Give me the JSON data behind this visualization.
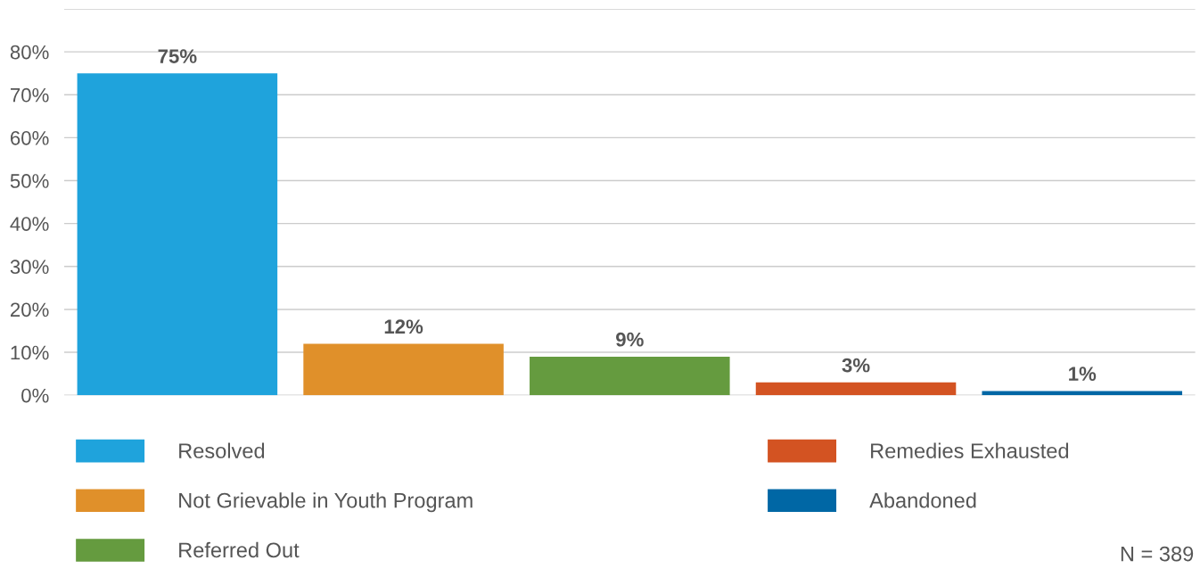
{
  "chart_data": {
    "type": "bar",
    "categories": [
      null,
      null,
      null,
      null,
      null
    ],
    "series": [
      {
        "name": "Resolved",
        "color": "#1fa3dc",
        "values": [
          75,
          null,
          null,
          null,
          null
        ],
        "value_labels": [
          "75%",
          null,
          null,
          null,
          null
        ]
      },
      {
        "name": "Not Grievable in Youth Program",
        "color": "#e0902a",
        "values": [
          null,
          12,
          null,
          null,
          null
        ],
        "value_labels": [
          null,
          "12%",
          null,
          null,
          null
        ]
      },
      {
        "name": "Referred Out",
        "color": "#659b3f",
        "values": [
          null,
          null,
          9,
          null,
          null
        ],
        "value_labels": [
          null,
          null,
          "9%",
          null,
          null
        ]
      },
      {
        "name": "Remedies Exhausted",
        "color": "#d35322",
        "values": [
          null,
          null,
          null,
          3,
          null
        ],
        "value_labels": [
          null,
          null,
          null,
          "3%",
          null
        ]
      },
      {
        "name": "Abandoned",
        "color": "#0067a5",
        "values": [
          null,
          null,
          null,
          null,
          1
        ],
        "value_labels": [
          null,
          null,
          null,
          null,
          "1%"
        ]
      }
    ],
    "ylim": [
      0,
      90
    ],
    "yticks": [
      {
        "value": 0,
        "label": "0%"
      },
      {
        "value": 10,
        "label": "10%"
      },
      {
        "value": 20,
        "label": "20%"
      },
      {
        "value": 30,
        "label": "30%"
      },
      {
        "value": 40,
        "label": "40%"
      },
      {
        "value": 50,
        "label": "50%"
      },
      {
        "value": 60,
        "label": "60%"
      },
      {
        "value": 70,
        "label": "70%"
      },
      {
        "value": 80,
        "label": "80%"
      },
      {
        "value": 90,
        "label": null
      }
    ],
    "grid": "y",
    "legend": "bottom",
    "annotations": [
      "N = 389"
    ]
  }
}
